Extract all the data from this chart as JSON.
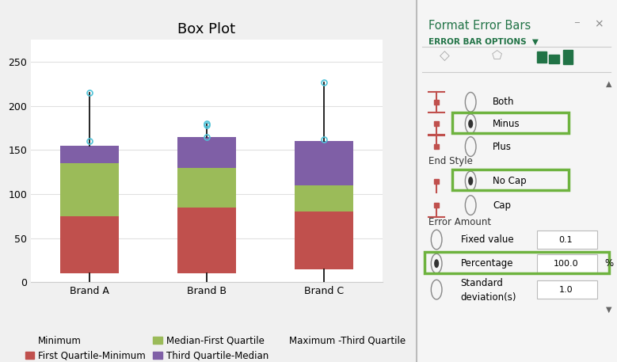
{
  "title": "Box Plot",
  "categories": [
    "Brand A",
    "Brand B",
    "Brand C"
  ],
  "brands": {
    "Brand A": {
      "min": 10,
      "q1": 75,
      "median": 135,
      "q3": 155,
      "max": 215,
      "extra_markers": [
        160
      ]
    },
    "Brand B": {
      "min": 10,
      "q1": 85,
      "median": 130,
      "q3": 165,
      "max": 180,
      "extra_markers": [
        165,
        178
      ]
    },
    "Brand C": {
      "min": 15,
      "q1": 80,
      "median": 110,
      "q3": 160,
      "max": 227,
      "extra_markers": [
        162
      ]
    }
  },
  "colors": {
    "q1_min": "#C0504D",
    "median_q1": "#9BBB59",
    "q3_median": "#7F5FA6",
    "whisker": "#000000",
    "marker": "#4FC3D8",
    "chart_bg": "#FFFFFF",
    "outer_bg": "#F0F0F0",
    "grid": "#E0E0E0"
  },
  "ylim": [
    0,
    275
  ],
  "yticks": [
    0,
    50,
    100,
    150,
    200,
    250
  ],
  "bar_width": 0.5,
  "legend": [
    {
      "label": "Minimum",
      "color": null
    },
    {
      "label": "First Quartile-Minimum",
      "color": "#C0504D"
    },
    {
      "label": "Median-First Quartile",
      "color": "#9BBB59"
    },
    {
      "label": "Third Quartile-Median",
      "color": "#7F5FA6"
    },
    {
      "label": "Maximum -Third Quartile",
      "color": null
    }
  ],
  "panel": {
    "bg": "#F5F5F5",
    "title": "Format Error Bars",
    "title_color": "#217346",
    "subtitle": "ERROR BAR OPTIONS  ▼",
    "subtitle_color": "#217346",
    "green_box_color": "#6EB33F",
    "direction_options": [
      "Both",
      "Minus",
      "Plus"
    ],
    "direction_selected": "Minus",
    "end_style_options": [
      "No Cap",
      "Cap"
    ],
    "end_style_selected": "No Cap",
    "error_amount_options": [
      {
        "label": "Fixed value",
        "value": "0.1",
        "selected": false
      },
      {
        "label": "Percentage",
        "value": "100.0",
        "selected": true,
        "unit": "%"
      },
      {
        "label": "Standard\ndeviation(s)",
        "value": "1.0",
        "selected": false
      }
    ]
  }
}
